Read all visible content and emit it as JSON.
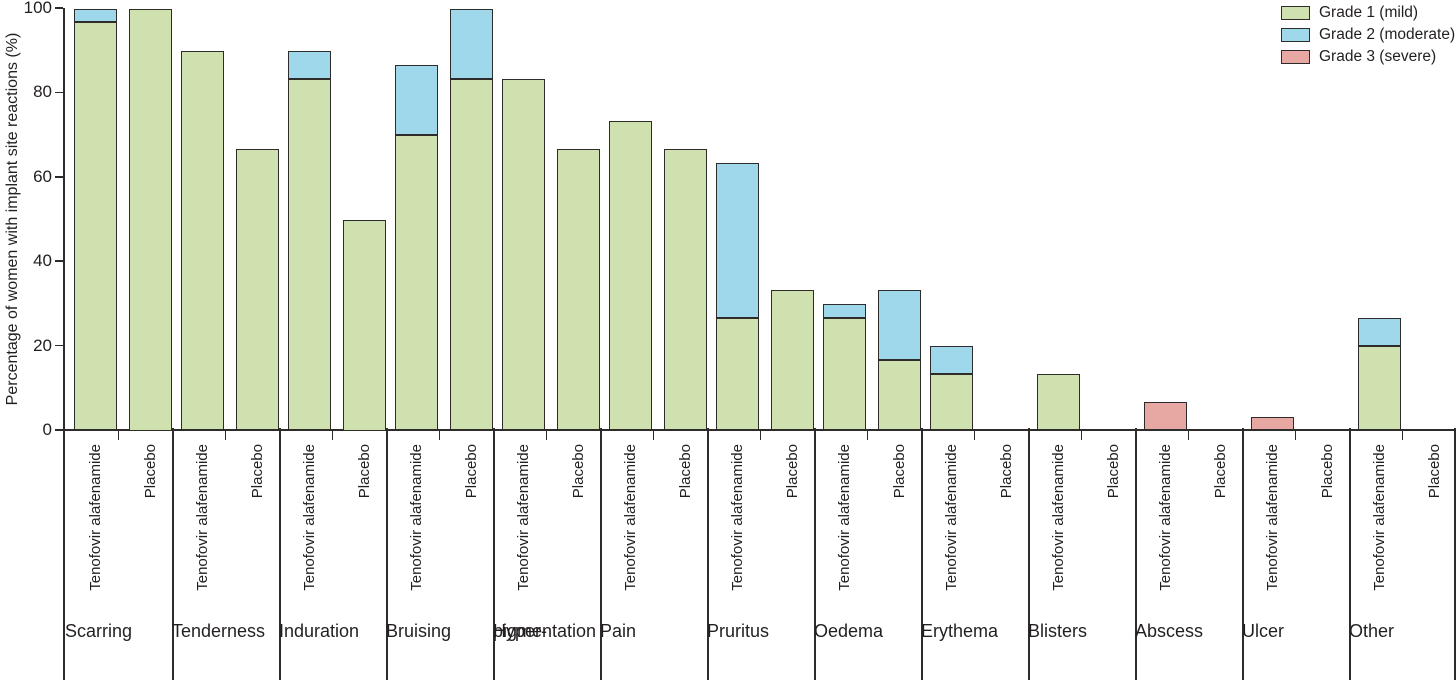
{
  "chart_data": {
    "type": "bar",
    "stacked": true,
    "title": "",
    "xlabel": "",
    "ylabel": "Percentage of women with implant site reactions (%)",
    "ylim": [
      0,
      100
    ],
    "y_ticks": [
      0,
      20,
      40,
      60,
      80,
      100
    ],
    "grid": false,
    "legend_position": "top-right",
    "axis_color": "#2d2c2b",
    "text_color": "#231f20",
    "arms": [
      "Tenofovir alafenamide",
      "Placebo"
    ],
    "grades": [
      {
        "label": "Grade 1 (mild)",
        "color": "#cfe1ae"
      },
      {
        "label": "Grade 2 (moderate)",
        "color": "#a0d8eb"
      },
      {
        "label": "Grade 3 (severe)",
        "color": "#e7a7a2"
      }
    ],
    "categories": [
      "Scarring",
      "Tenderness",
      "Induration",
      "Bruising",
      "Hyper-\npigmentation",
      "Pain",
      "Pruritus",
      "Oedema",
      "Erythema",
      "Blisters",
      "Abscess",
      "Ulcer",
      "Other"
    ],
    "values": [
      {
        "category": "Scarring",
        "tenofovir_alafenamide": [
          96.7,
          3.3,
          0
        ],
        "placebo": [
          100,
          0,
          0
        ]
      },
      {
        "category": "Tenderness",
        "tenofovir_alafenamide": [
          90,
          0,
          0
        ],
        "placebo": [
          66.7,
          0,
          0
        ]
      },
      {
        "category": "Induration",
        "tenofovir_alafenamide": [
          83.3,
          6.7,
          0
        ],
        "placebo": [
          50,
          0,
          0
        ]
      },
      {
        "category": "Bruising",
        "tenofovir_alafenamide": [
          70,
          16.7,
          0
        ],
        "placebo": [
          83.3,
          16.7,
          0
        ]
      },
      {
        "category": "Hyper-pigmentation",
        "tenofovir_alafenamide": [
          83.3,
          0,
          0
        ],
        "placebo": [
          66.7,
          0,
          0
        ]
      },
      {
        "category": "Pain",
        "tenofovir_alafenamide": [
          73.3,
          0,
          0
        ],
        "placebo": [
          66.7,
          0,
          0
        ]
      },
      {
        "category": "Pruritus",
        "tenofovir_alafenamide": [
          26.7,
          36.7,
          0
        ],
        "placebo": [
          33.3,
          0,
          0
        ]
      },
      {
        "category": "Oedema",
        "tenofovir_alafenamide": [
          26.7,
          3.3,
          0
        ],
        "placebo": [
          16.7,
          16.7,
          0
        ]
      },
      {
        "category": "Erythema",
        "tenofovir_alafenamide": [
          13.3,
          6.7,
          0
        ],
        "placebo": [
          0,
          0,
          0
        ]
      },
      {
        "category": "Blisters",
        "tenofovir_alafenamide": [
          13.3,
          0,
          0
        ],
        "placebo": [
          0,
          0,
          0
        ]
      },
      {
        "category": "Abscess",
        "tenofovir_alafenamide": [
          0,
          0,
          6.7
        ],
        "placebo": [
          0,
          0,
          0
        ]
      },
      {
        "category": "Ulcer",
        "tenofovir_alafenamide": [
          0,
          0,
          3.3
        ],
        "placebo": [
          0,
          0,
          0
        ]
      },
      {
        "category": "Other",
        "tenofovir_alafenamide": [
          20,
          6.7,
          0
        ],
        "placebo": [
          0,
          0,
          0
        ]
      }
    ]
  }
}
